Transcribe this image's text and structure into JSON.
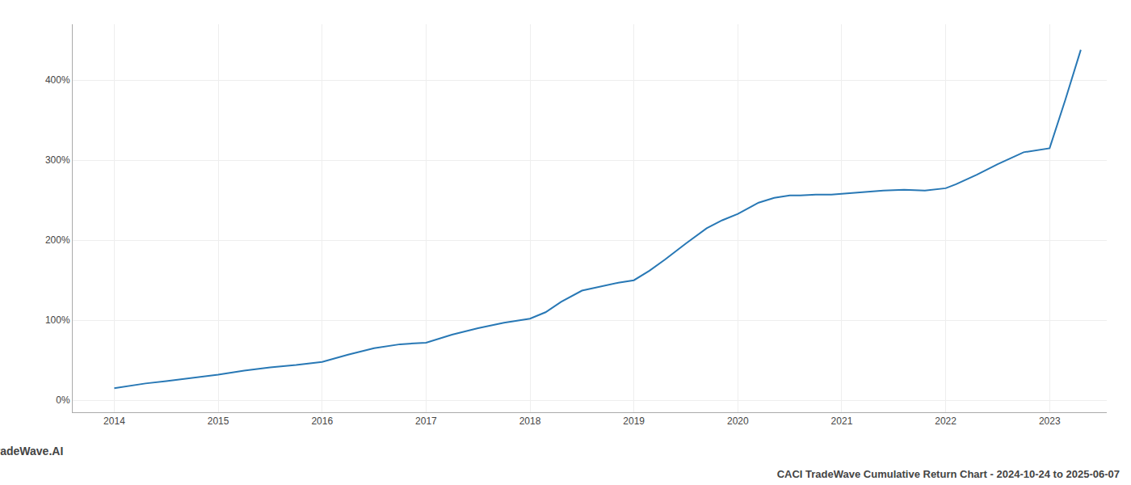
{
  "chart_data": {
    "type": "line",
    "title": "CACI TradeWave Cumulative Return Chart - 2024-10-24 to 2025-06-07",
    "annotations": [
      "TradeWave.AI"
    ],
    "x": [
      2014.0,
      2014.15,
      2014.3,
      2014.5,
      2014.7,
      2014.85,
      2015.0,
      2015.25,
      2015.5,
      2015.75,
      2016.0,
      2016.25,
      2016.5,
      2016.75,
      2017.0,
      2017.25,
      2017.5,
      2017.75,
      2018.0,
      2018.15,
      2018.3,
      2018.5,
      2018.7,
      2018.85,
      2019.0,
      2019.15,
      2019.3,
      2019.5,
      2019.7,
      2019.85,
      2020.0,
      2020.2,
      2020.35,
      2020.5,
      2020.6,
      2020.75,
      2020.9,
      2021.0,
      2021.2,
      2021.4,
      2021.6,
      2021.8,
      2022.0,
      2022.1,
      2022.3,
      2022.5,
      2022.75,
      2023.0,
      2023.15,
      2023.3
    ],
    "values": [
      15,
      18,
      21,
      24,
      27,
      29,
      32,
      37,
      41,
      44,
      48,
      57,
      65,
      70,
      72,
      82,
      90,
      97,
      102,
      110,
      123,
      137,
      143,
      147,
      150,
      162,
      176,
      196,
      215,
      225,
      233,
      247,
      253,
      256,
      256,
      257,
      257,
      258,
      260,
      262,
      263,
      262,
      265,
      270,
      282,
      295,
      310,
      315,
      375,
      438
    ],
    "color": "#2878b5",
    "xlim": [
      2013.6,
      2023.55
    ],
    "ylim": [
      -15,
      470
    ],
    "xticks": [
      2014,
      2015,
      2016,
      2017,
      2018,
      2019,
      2020,
      2021,
      2022,
      2023
    ],
    "yticks": [
      {
        "value": 0,
        "label": "0%"
      },
      {
        "value": 100,
        "label": "100%"
      },
      {
        "value": 200,
        "label": "200%"
      },
      {
        "value": 300,
        "label": "300%"
      },
      {
        "value": 400,
        "label": "400%"
      }
    ],
    "grid": true
  }
}
